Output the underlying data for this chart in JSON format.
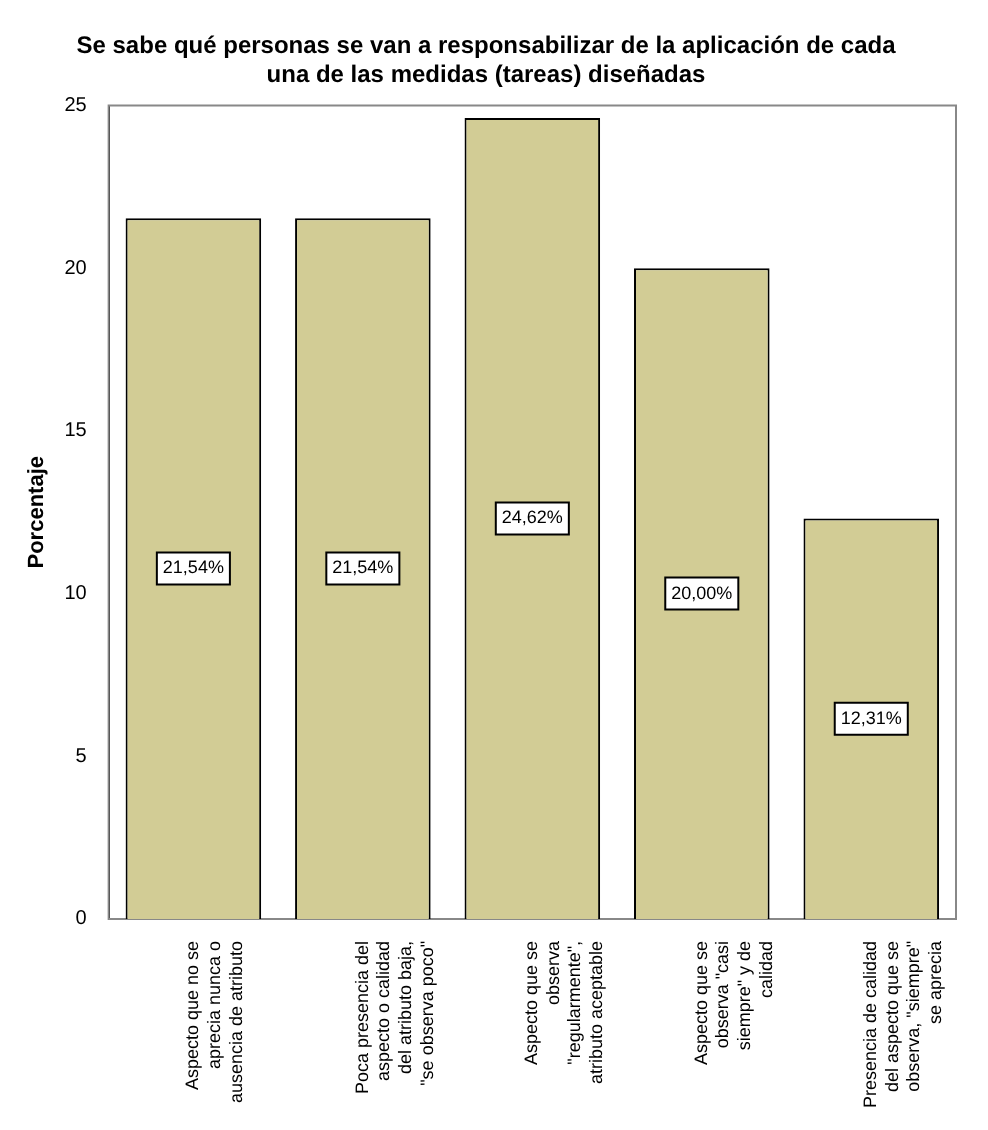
{
  "chart_data": {
    "type": "bar",
    "title": "Se sabe qué personas se van a responsabilizar de la aplicación de cada una de las medidas (tareas) diseñadas",
    "ylabel": "Porcentaje",
    "categories": [
      "Aspecto que no se aprecia nunca o ausencia de atributo",
      "Poca presencia del aspecto o calidad del atributo baja, \"se observa poco\"",
      "Aspecto que se observa \"regularmente\", atributo aceptable",
      "Aspecto que se observa \"casi siempre\" y de calidad",
      "Presencia de calidad del aspecto que se observa, \"siempre\" se aprecia"
    ],
    "values": [
      21.54,
      21.54,
      24.62,
      20.0,
      12.31
    ],
    "value_labels": [
      "21,54%",
      "21,54%",
      "24,62%",
      "20,00%",
      "12,31%"
    ],
    "color": "#d2cc95",
    "ylim": [
      0,
      25
    ],
    "yticks": [
      0,
      5,
      10,
      15,
      20,
      25
    ],
    "grid": false,
    "legend": false
  }
}
